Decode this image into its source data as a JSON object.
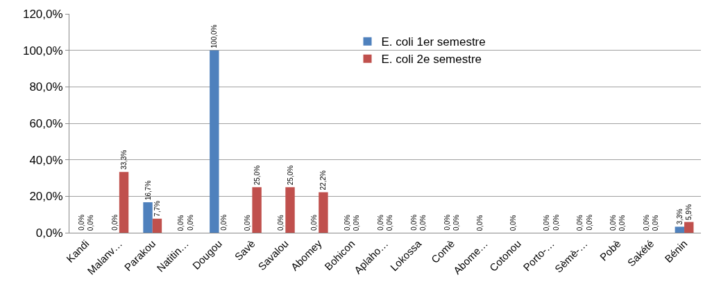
{
  "chart_data": {
    "type": "bar",
    "categories": [
      "Kandi",
      "Malanv…",
      "Parakou",
      "Natitin…",
      "Dougou",
      "Savè",
      "Savalou",
      "Abomey",
      "Bohicon",
      "Aplaho…",
      "Lokossa",
      "Comè",
      "Abome…",
      "Cotonou",
      "Porto-…",
      "Sèmè-…",
      "Pobè",
      "Sakété",
      "Bénin"
    ],
    "series": [
      {
        "name": "E. coli 1er semestre",
        "color": "#4f81bd",
        "values": [
          0,
          0,
          16.7,
          0,
          100,
          0,
          0,
          0,
          0,
          0,
          0,
          0,
          0,
          0,
          0,
          0,
          0,
          0,
          3.3
        ],
        "value_labels": [
          "0,0%",
          "0,0%",
          "16,7%",
          "0,0%",
          "100,0%",
          "0,0%",
          "0,0%",
          "0,0%",
          "0,0%",
          "0,0%",
          "0,0%",
          "0,0%",
          "0,0%",
          "0,0%",
          "0,0%",
          "0,0%",
          "0,0%",
          "0,0%",
          "3,3%"
        ]
      },
      {
        "name": "E. coli 2e semestre",
        "color": "#c0504d",
        "values": [
          0,
          33.3,
          7.7,
          0,
          0,
          25,
          25,
          22.2,
          0,
          0,
          0,
          0,
          null,
          null,
          0,
          0,
          0,
          0,
          5.9
        ],
        "value_labels": [
          "0,0%",
          "33,3%",
          "7,7%",
          "0,0%",
          "0,0%",
          "25,0%",
          "25,0%",
          "22,2%",
          "0,0%",
          "0,0%",
          "0,0%",
          "0,0%",
          null,
          null,
          "0,0%",
          "0,0%",
          "0,0%",
          "0,0%",
          "5,9%"
        ]
      }
    ],
    "ylim": [
      0,
      120
    ],
    "yticks": [
      {
        "value": 0,
        "label": "0,0%"
      },
      {
        "value": 20,
        "label": "20,0%"
      },
      {
        "value": 40,
        "label": "40,0%"
      },
      {
        "value": 60,
        "label": "60,0%"
      },
      {
        "value": 80,
        "label": "80,0%"
      },
      {
        "value": 100,
        "label": "100,0%"
      },
      {
        "value": 120,
        "label": "120,0%"
      }
    ],
    "grid": "y",
    "legend": "top right"
  }
}
